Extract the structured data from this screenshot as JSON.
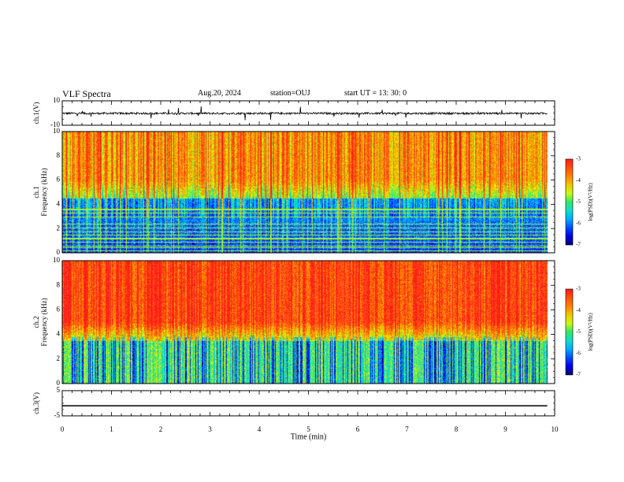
{
  "header": {
    "title": "VLF Spectra",
    "date": "Aug.20, 2024",
    "station": "station=OUJ",
    "start": "start  UT  =   13: 30: 0"
  },
  "chart_data": [
    {
      "type": "line",
      "name": "ch1-waveform",
      "ylabel": "ch.1(V)",
      "ylim": [
        -10,
        10
      ],
      "yticks": [
        "10",
        "-10"
      ],
      "xlim": [
        0,
        10
      ],
      "baseline": 0,
      "trace_end_min": 9.85
    },
    {
      "type": "heatmap",
      "name": "ch1-spectrogram",
      "ylabel": "ch.1\nFrequency (kHz)",
      "ylabel_lines": [
        "ch.1",
        "Frequency (kHz)"
      ],
      "ylim": [
        0,
        10
      ],
      "yticks": [
        "0",
        "2",
        "4",
        "6",
        "8",
        "10"
      ],
      "xlim": [
        0,
        10
      ],
      "data_end_min": 9.85,
      "colorbar": {
        "label": "log(PSD)(V²/Hz)",
        "range": [
          -7,
          -3
        ],
        "ticks": [
          "-3",
          "-4",
          "-5",
          "-6",
          "-7"
        ]
      }
    },
    {
      "type": "heatmap",
      "name": "ch2-spectrogram",
      "ylabel": "ch.2\nFrequency (kHz)",
      "ylabel_lines": [
        "ch.2",
        "Frequency (kHz)"
      ],
      "ylim": [
        0,
        10
      ],
      "yticks": [
        "0",
        "2",
        "4",
        "6",
        "8",
        "10"
      ],
      "xlim": [
        0,
        10
      ],
      "data_end_min": 9.85,
      "colorbar": {
        "label": "log(PSD)(V²/Hz)",
        "range": [
          -7,
          -3
        ],
        "ticks": [
          "-3",
          "-4",
          "-5",
          "-6",
          "-7"
        ]
      }
    },
    {
      "type": "line",
      "name": "ch3-waveform",
      "ylabel": "ch.3(V)",
      "ylim": [
        -5,
        5
      ],
      "yticks": [
        "5",
        "-5"
      ],
      "xlim": [
        0,
        10
      ],
      "value": -1,
      "trace_end_min": 9.85,
      "xlabel": "Time (min)",
      "xticks": [
        "0",
        "1",
        "2",
        "3",
        "4",
        "5",
        "6",
        "7",
        "8",
        "9",
        "10"
      ]
    }
  ]
}
